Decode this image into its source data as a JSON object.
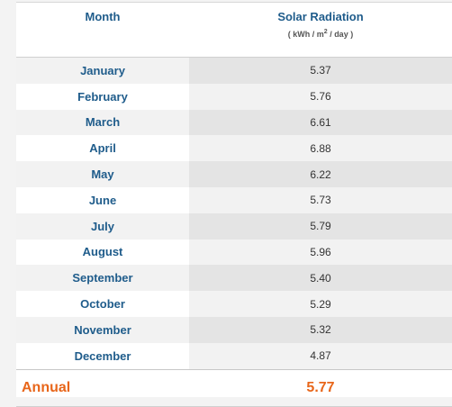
{
  "header": {
    "month": "Month",
    "radiation": "Solar Radiation",
    "unit_parts": [
      "( kWh / m",
      "2",
      " / day )"
    ]
  },
  "table": {
    "rows": [
      [
        "January",
        "5.37"
      ],
      [
        "February",
        "5.76"
      ],
      [
        "March",
        "6.61"
      ],
      [
        "April",
        "6.88"
      ],
      [
        "May",
        "6.22"
      ],
      [
        "June",
        "5.73"
      ],
      [
        "July",
        "5.79"
      ],
      [
        "August",
        "5.96"
      ],
      [
        "September",
        "5.40"
      ],
      [
        "October",
        "5.29"
      ],
      [
        "November",
        "5.32"
      ],
      [
        "December",
        "4.87"
      ]
    ]
  },
  "annual": {
    "label": "Annual",
    "value": "5.77"
  }
}
